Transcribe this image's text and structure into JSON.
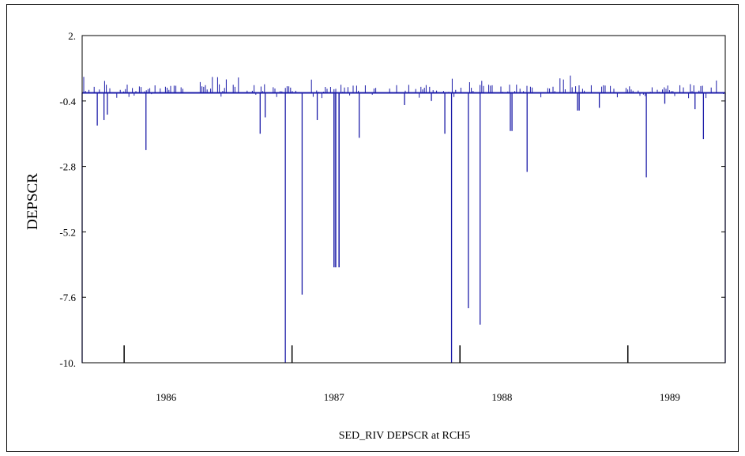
{
  "chart_data": {
    "type": "line",
    "title": "",
    "xlabel": "SED_RIV DEPSCR at RCH5",
    "ylabel": "DEPSCR",
    "ylim": [
      -10,
      2
    ],
    "xlim": [
      1985.25,
      1989.08
    ],
    "y_ticks": [
      2,
      -0.4,
      -2.8,
      -5.2,
      -7.6,
      -10
    ],
    "y_tick_labels": [
      "2.",
      "-0.4",
      "-2.8",
      "-5.2",
      "-7.6",
      "-10."
    ],
    "x_tick_labels": [
      {
        "value": 1985.75,
        "label": "1986"
      },
      {
        "value": 1986.75,
        "label": "1987"
      },
      {
        "value": 1987.75,
        "label": "1988"
      },
      {
        "value": 1988.75,
        "label": "1989"
      }
    ],
    "x_major_ticks": [
      1985.5,
      1986.5,
      1987.5,
      1988.5
    ],
    "grid": false,
    "baseline": -0.1,
    "colors": {
      "series": "#1c1ca8"
    },
    "series": [
      {
        "values": [
          {
            "x": 1985.25,
            "y": -10
          },
          {
            "x": 1985.34,
            "y": -1.3
          },
          {
            "x": 1985.38,
            "y": -1.1
          },
          {
            "x": 1985.4,
            "y": -0.9
          },
          {
            "x": 1985.63,
            "y": -2.2
          },
          {
            "x": 1986.31,
            "y": -1.6
          },
          {
            "x": 1986.34,
            "y": -1.0
          },
          {
            "x": 1986.46,
            "y": -10
          },
          {
            "x": 1986.56,
            "y": -7.5
          },
          {
            "x": 1986.65,
            "y": -1.1
          },
          {
            "x": 1986.75,
            "y": -6.5
          },
          {
            "x": 1986.76,
            "y": -6.5
          },
          {
            "x": 1986.78,
            "y": -6.5
          },
          {
            "x": 1986.9,
            "y": -1.75
          },
          {
            "x": 1987.17,
            "y": -0.55
          },
          {
            "x": 1987.33,
            "y": -0.4
          },
          {
            "x": 1987.41,
            "y": -1.6
          },
          {
            "x": 1987.45,
            "y": -10
          },
          {
            "x": 1987.55,
            "y": -8.0
          },
          {
            "x": 1987.62,
            "y": -8.6
          },
          {
            "x": 1987.8,
            "y": -1.5
          },
          {
            "x": 1987.81,
            "y": -1.5
          },
          {
            "x": 1987.9,
            "y": -3.0
          },
          {
            "x": 1988.2,
            "y": -0.75
          },
          {
            "x": 1988.21,
            "y": -0.75
          },
          {
            "x": 1988.33,
            "y": -0.65
          },
          {
            "x": 1988.61,
            "y": -3.2
          },
          {
            "x": 1988.72,
            "y": -0.5
          },
          {
            "x": 1988.9,
            "y": -0.7
          },
          {
            "x": 1988.95,
            "y": -1.8
          },
          {
            "x": 1989.08,
            "y": -10
          }
        ]
      }
    ]
  }
}
